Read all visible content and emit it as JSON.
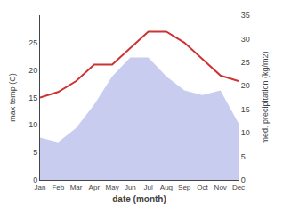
{
  "chart_data": {
    "type": "line",
    "categories": [
      "Jan",
      "Feb",
      "Mar",
      "Apr",
      "May",
      "Jun",
      "Jul",
      "Aug",
      "Sep",
      "Oct",
      "Nov",
      "Dec"
    ],
    "series": [
      {
        "type": "area",
        "axis": "y2",
        "color": "#c8ccee",
        "values": [
          9,
          8,
          11,
          16,
          22,
          26,
          26,
          22,
          19,
          18,
          19,
          12
        ]
      },
      {
        "type": "line",
        "axis": "y",
        "color": "#cc3333",
        "values": [
          15,
          16,
          18,
          21,
          21,
          24,
          27,
          27,
          25,
          22,
          19,
          18
        ]
      }
    ],
    "xlabel": "date (month)",
    "ylabel": "max temp (C)",
    "y2label": "med. precipitation (kg/m2)",
    "ylim": [
      0,
      30
    ],
    "yticks": [
      0,
      5,
      10,
      15,
      20,
      25
    ],
    "y2lim": [
      0,
      35
    ],
    "y2ticks": [
      0,
      5,
      10,
      15,
      20,
      25,
      30,
      35
    ],
    "grid": false
  }
}
